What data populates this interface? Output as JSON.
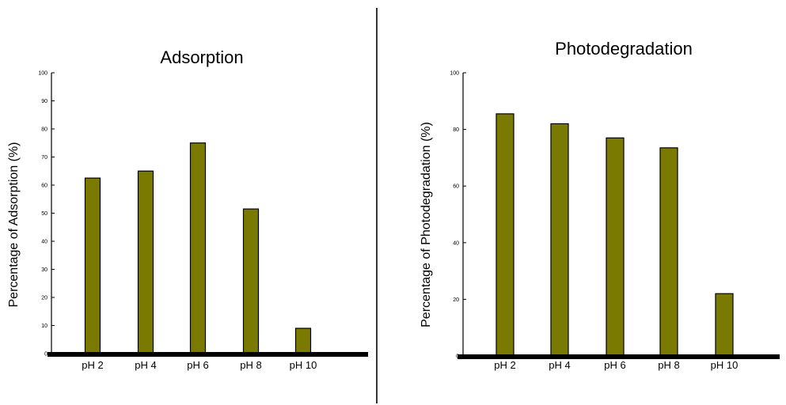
{
  "divider_color": "#000000",
  "bar_color": "#7a7a00",
  "bar_outline_color": "#000000",
  "chart_data": [
    {
      "type": "bar",
      "title": "Adsorption",
      "xlabel": "",
      "ylabel": "Percentage of Adsorption (%)",
      "categories": [
        "pH 2",
        "pH 4",
        "pH 6",
        "pH 8",
        "pH 10"
      ],
      "values": [
        62.5,
        65,
        75,
        51.5,
        9
      ],
      "ylim": [
        0,
        100
      ],
      "yticks": [
        0,
        10,
        20,
        30,
        40,
        50,
        60,
        70,
        80,
        90,
        100
      ],
      "ytick_labels": [
        "0",
        "10",
        "20",
        "30",
        "40",
        "50",
        "60",
        "70",
        "80",
        "90",
        "100"
      ],
      "grid": false,
      "legend": "none"
    },
    {
      "type": "bar",
      "title": "Photodegradation",
      "xlabel": "",
      "ylabel": "Percentage of Photodegradation (%)",
      "categories": [
        "pH 2",
        "pH 4",
        "pH 6",
        "pH 8",
        "pH 10"
      ],
      "values": [
        85.5,
        82,
        77,
        73.5,
        22
      ],
      "ylim": [
        0,
        100
      ],
      "yticks": [
        0,
        20,
        40,
        60,
        80,
        100
      ],
      "ytick_labels": [
        "0",
        "20",
        "40",
        "60",
        "80",
        "100"
      ],
      "grid": false,
      "legend": "none"
    }
  ]
}
